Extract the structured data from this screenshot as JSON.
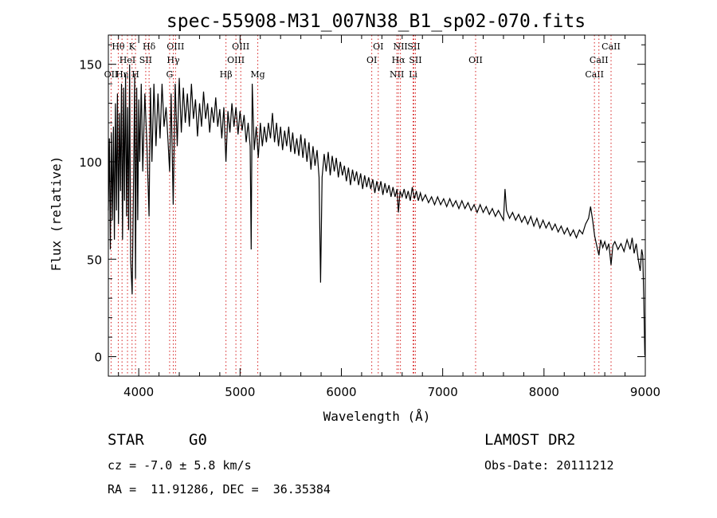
{
  "chart_data": {
    "type": "line",
    "title": "spec-55908-M31_007N38_B1_sp02-070.fits",
    "xlabel": "Wavelength (Å)",
    "ylabel": "Flux (relative)",
    "xlim": [
      3700,
      9000
    ],
    "ylim": [
      -10,
      165
    ],
    "x_ticks": [
      4000,
      5000,
      6000,
      7000,
      8000,
      9000
    ],
    "y_ticks": [
      0,
      50,
      100,
      150
    ],
    "grid": false,
    "series": [
      {
        "points": [
          [
            3700,
            75
          ],
          [
            3710,
            112
          ],
          [
            3720,
            55
          ],
          [
            3730,
            115
          ],
          [
            3740,
            70
          ],
          [
            3750,
            118
          ],
          [
            3760,
            60
          ],
          [
            3770,
            130
          ],
          [
            3780,
            75
          ],
          [
            3790,
            135
          ],
          [
            3800,
            68
          ],
          [
            3810,
            125
          ],
          [
            3820,
            85
          ],
          [
            3830,
            140
          ],
          [
            3840,
            60
          ],
          [
            3850,
            138
          ],
          [
            3860,
            80
          ],
          [
            3870,
            145
          ],
          [
            3880,
            72
          ],
          [
            3890,
            128
          ],
          [
            3900,
            65
          ],
          [
            3910,
            150
          ],
          [
            3920,
            50
          ],
          [
            3935,
            32
          ],
          [
            3950,
            95
          ],
          [
            3960,
            145
          ],
          [
            3968,
            40
          ],
          [
            3980,
            138
          ],
          [
            3990,
            70
          ],
          [
            4000,
            132
          ],
          [
            4010,
            100
          ],
          [
            4025,
            140
          ],
          [
            4040,
            95
          ],
          [
            4060,
            135
          ],
          [
            4080,
            110
          ],
          [
            4102,
            72
          ],
          [
            4115,
            138
          ],
          [
            4130,
            100
          ],
          [
            4150,
            140
          ],
          [
            4170,
            108
          ],
          [
            4190,
            135
          ],
          [
            4210,
            112
          ],
          [
            4230,
            140
          ],
          [
            4250,
            118
          ],
          [
            4270,
            128
          ],
          [
            4290,
            110
          ],
          [
            4305,
            95
          ],
          [
            4320,
            135
          ],
          [
            4340,
            78
          ],
          [
            4360,
            140
          ],
          [
            4380,
            108
          ],
          [
            4400,
            143
          ],
          [
            4420,
            115
          ],
          [
            4440,
            138
          ],
          [
            4460,
            120
          ],
          [
            4480,
            135
          ],
          [
            4500,
            118
          ],
          [
            4520,
            140
          ],
          [
            4540,
            122
          ],
          [
            4560,
            132
          ],
          [
            4580,
            113
          ],
          [
            4600,
            130
          ],
          [
            4620,
            118
          ],
          [
            4640,
            136
          ],
          [
            4660,
            122
          ],
          [
            4680,
            130
          ],
          [
            4700,
            115
          ],
          [
            4720,
            128
          ],
          [
            4740,
            120
          ],
          [
            4760,
            133
          ],
          [
            4780,
            118
          ],
          [
            4800,
            127
          ],
          [
            4820,
            112
          ],
          [
            4840,
            128
          ],
          [
            4861,
            100
          ],
          [
            4880,
            126
          ],
          [
            4900,
            115
          ],
          [
            4920,
            130
          ],
          [
            4940,
            118
          ],
          [
            4960,
            128
          ],
          [
            4980,
            114
          ],
          [
            5000,
            126
          ],
          [
            5020,
            116
          ],
          [
            5040,
            124
          ],
          [
            5060,
            110
          ],
          [
            5080,
            120
          ],
          [
            5100,
            108
          ],
          [
            5110,
            55
          ],
          [
            5120,
            140
          ],
          [
            5140,
            106
          ],
          [
            5160,
            118
          ],
          [
            5180,
            102
          ],
          [
            5200,
            120
          ],
          [
            5220,
            108
          ],
          [
            5240,
            118
          ],
          [
            5260,
            110
          ],
          [
            5280,
            120
          ],
          [
            5300,
            112
          ],
          [
            5320,
            125
          ],
          [
            5340,
            110
          ],
          [
            5360,
            120
          ],
          [
            5380,
            108
          ],
          [
            5400,
            118
          ],
          [
            5420,
            106
          ],
          [
            5440,
            116
          ],
          [
            5460,
            108
          ],
          [
            5480,
            118
          ],
          [
            5500,
            105
          ],
          [
            5520,
            115
          ],
          [
            5540,
            104
          ],
          [
            5560,
            112
          ],
          [
            5580,
            103
          ],
          [
            5600,
            114
          ],
          [
            5620,
            102
          ],
          [
            5640,
            112
          ],
          [
            5660,
            100
          ],
          [
            5680,
            110
          ],
          [
            5700,
            96
          ],
          [
            5720,
            108
          ],
          [
            5740,
            98
          ],
          [
            5760,
            106
          ],
          [
            5780,
            92
          ],
          [
            5795,
            38
          ],
          [
            5810,
            92
          ],
          [
            5830,
            104
          ],
          [
            5850,
            95
          ],
          [
            5870,
            105
          ],
          [
            5890,
            93
          ],
          [
            5910,
            103
          ],
          [
            5930,
            95
          ],
          [
            5950,
            102
          ],
          [
            5970,
            92
          ],
          [
            5990,
            100
          ],
          [
            6010,
            93
          ],
          [
            6030,
            98
          ],
          [
            6050,
            90
          ],
          [
            6070,
            97
          ],
          [
            6090,
            88
          ],
          [
            6110,
            96
          ],
          [
            6130,
            90
          ],
          [
            6150,
            95
          ],
          [
            6170,
            88
          ],
          [
            6190,
            94
          ],
          [
            6210,
            86
          ],
          [
            6230,
            93
          ],
          [
            6250,
            87
          ],
          [
            6270,
            92
          ],
          [
            6290,
            86
          ],
          [
            6310,
            91
          ],
          [
            6330,
            84
          ],
          [
            6350,
            90
          ],
          [
            6370,
            85
          ],
          [
            6390,
            90
          ],
          [
            6410,
            83
          ],
          [
            6430,
            89
          ],
          [
            6450,
            84
          ],
          [
            6470,
            88
          ],
          [
            6490,
            82
          ],
          [
            6510,
            87
          ],
          [
            6530,
            82
          ],
          [
            6550,
            86
          ],
          [
            6563,
            74
          ],
          [
            6580,
            85
          ],
          [
            6600,
            82
          ],
          [
            6620,
            86
          ],
          [
            6640,
            81
          ],
          [
            6660,
            85
          ],
          [
            6680,
            80
          ],
          [
            6700,
            87
          ],
          [
            6720,
            81
          ],
          [
            6740,
            85
          ],
          [
            6760,
            80
          ],
          [
            6780,
            84
          ],
          [
            6800,
            80
          ],
          [
            6830,
            83
          ],
          [
            6860,
            79
          ],
          [
            6890,
            82
          ],
          [
            6920,
            78
          ],
          [
            6950,
            82
          ],
          [
            6980,
            78
          ],
          [
            7010,
            81
          ],
          [
            7040,
            77
          ],
          [
            7070,
            81
          ],
          [
            7100,
            77
          ],
          [
            7130,
            80
          ],
          [
            7160,
            76
          ],
          [
            7190,
            80
          ],
          [
            7220,
            76
          ],
          [
            7250,
            79
          ],
          [
            7280,
            75
          ],
          [
            7310,
            78
          ],
          [
            7340,
            74
          ],
          [
            7370,
            78
          ],
          [
            7400,
            74
          ],
          [
            7430,
            77
          ],
          [
            7460,
            73
          ],
          [
            7490,
            76
          ],
          [
            7520,
            72
          ],
          [
            7550,
            75
          ],
          [
            7580,
            72
          ],
          [
            7600,
            70
          ],
          [
            7615,
            86
          ],
          [
            7630,
            75
          ],
          [
            7660,
            71
          ],
          [
            7690,
            74
          ],
          [
            7720,
            70
          ],
          [
            7750,
            73
          ],
          [
            7780,
            69
          ],
          [
            7810,
            72
          ],
          [
            7840,
            68
          ],
          [
            7870,
            72
          ],
          [
            7900,
            67
          ],
          [
            7930,
            71
          ],
          [
            7960,
            66
          ],
          [
            7990,
            70
          ],
          [
            8020,
            66
          ],
          [
            8050,
            69
          ],
          [
            8080,
            65
          ],
          [
            8110,
            68
          ],
          [
            8140,
            64
          ],
          [
            8170,
            67
          ],
          [
            8200,
            63
          ],
          [
            8230,
            66
          ],
          [
            8260,
            62
          ],
          [
            8290,
            65
          ],
          [
            8320,
            61
          ],
          [
            8350,
            65
          ],
          [
            8380,
            63
          ],
          [
            8410,
            68
          ],
          [
            8440,
            71
          ],
          [
            8460,
            77
          ],
          [
            8480,
            70
          ],
          [
            8500,
            62
          ],
          [
            8520,
            57
          ],
          [
            8542,
            52
          ],
          [
            8560,
            60
          ],
          [
            8580,
            56
          ],
          [
            8600,
            59
          ],
          [
            8620,
            55
          ],
          [
            8640,
            58
          ],
          [
            8662,
            47
          ],
          [
            8680,
            57
          ],
          [
            8700,
            59
          ],
          [
            8730,
            55
          ],
          [
            8760,
            58
          ],
          [
            8790,
            54
          ],
          [
            8820,
            60
          ],
          [
            8850,
            55
          ],
          [
            8870,
            61
          ],
          [
            8890,
            53
          ],
          [
            8910,
            58
          ],
          [
            8930,
            50
          ],
          [
            8950,
            44
          ],
          [
            8965,
            55
          ],
          [
            8975,
            52
          ],
          [
            8985,
            30
          ],
          [
            8995,
            1
          ],
          [
            9000,
            0
          ]
        ]
      }
    ],
    "lines": [
      {
        "name": "OII",
        "wl": 3727,
        "row": 3
      },
      {
        "name": "Hθ",
        "wl": 3798,
        "row": 1
      },
      {
        "name": "Hη",
        "wl": 3835,
        "row": 3
      },
      {
        "name": "HeI",
        "wl": 3889,
        "row": 2
      },
      {
        "name": "K",
        "wl": 3934,
        "row": 1
      },
      {
        "name": "H",
        "wl": 3968,
        "row": 3
      },
      {
        "name": "SII",
        "wl": 4069,
        "row": 2
      },
      {
        "name": "Hδ",
        "wl": 4102,
        "row": 1
      },
      {
        "name": "OIII",
        "wl": 4363,
        "row": 1
      },
      {
        "name": "Hγ",
        "wl": 4341,
        "row": 2
      },
      {
        "name": "G",
        "wl": 4305,
        "row": 3
      },
      {
        "name": "Hβ",
        "wl": 4861,
        "row": 3
      },
      {
        "name": "OIII",
        "wl": 4959,
        "row": 2
      },
      {
        "name": "OIII",
        "wl": 5007,
        "row": 1
      },
      {
        "name": "Mg",
        "wl": 5175,
        "row": 3
      },
      {
        "name": "OI",
        "wl": 6300,
        "row": 2
      },
      {
        "name": "OI",
        "wl": 6364,
        "row": 1
      },
      {
        "name": "NII",
        "wl": 6548,
        "row": 3
      },
      {
        "name": "Hα",
        "wl": 6563,
        "row": 2
      },
      {
        "name": "NII",
        "wl": 6583,
        "row": 1
      },
      {
        "name": "SII",
        "wl": 6716,
        "row": 1
      },
      {
        "name": "SII",
        "wl": 6731,
        "row": 2
      },
      {
        "name": "Li",
        "wl": 6708,
        "row": 3
      },
      {
        "name": "OII",
        "wl": 7325,
        "row": 2
      },
      {
        "name": "CaII",
        "wl": 8498,
        "row": 3
      },
      {
        "name": "CaII",
        "wl": 8542,
        "row": 2
      },
      {
        "name": "CaII",
        "wl": 8662,
        "row": 1
      }
    ],
    "line_color": "#d62020"
  },
  "info": {
    "class_label": "STAR",
    "subclass": "G0",
    "survey": "LAMOST DR2",
    "cz": "cz = -7.0 ± 5.8 km/s",
    "obs_date": "Obs-Date: 20111212",
    "coords": "RA =  11.91286, DEC =  36.35384"
  }
}
